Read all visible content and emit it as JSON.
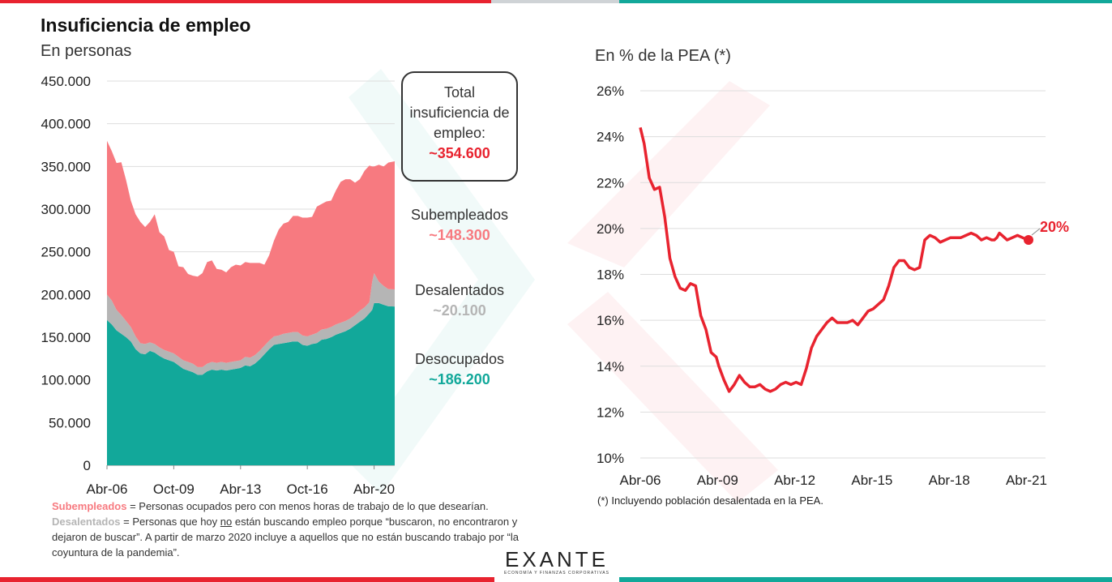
{
  "title": "Insuficiencia de empleo",
  "subtitle_left": "En personas",
  "subtitle_right": "En % de la PEA (*)",
  "total_box": {
    "line1": "Total",
    "line2": "insuficiencia de",
    "line3": "empleo:",
    "value": "~354.600"
  },
  "labels": {
    "subempleados": {
      "name": "Subempleados",
      "value": "~148.300",
      "color": "#f77a80"
    },
    "desalentados": {
      "name": "Desalentados",
      "value": "~20.100",
      "color": "#b5b5b5"
    },
    "desocupados": {
      "name": "Desocupados",
      "value": "~186.200",
      "color": "#12a89a"
    }
  },
  "notes": {
    "sub_term": "Subempleados",
    "sub_def": " = Personas ocupados pero con menos horas de trabajo de lo que desearían.",
    "des_term": "Desalentados",
    "des_def_a": " = Personas que hoy ",
    "des_def_no": "no",
    "des_def_b": " están buscando empleo porque “buscaron, no encontraron y dejaron de buscar”. A partir de marzo 2020 incluye a aquellos que no están buscando trabajo por “la coyuntura de la pandemia”."
  },
  "footnote": "(*) Incluyendo población desalentada en la PEA.",
  "logo": {
    "word": "EXANTE",
    "tagline": "ECONOMÍA Y FINANZAS CORPORATIVAS"
  },
  "chart_data": [
    {
      "type": "area",
      "stacked": true,
      "x_start": 2006.25,
      "x_end": 2021.33,
      "xtick_labels": [
        "Abr-06",
        "Oct-09",
        "Abr-13",
        "Oct-16",
        "Abr-20"
      ],
      "xtick_positions": [
        2006.25,
        2009.75,
        2013.25,
        2016.75,
        2020.25
      ],
      "ylim": [
        0,
        450000
      ],
      "ytick_values": [
        0,
        50000,
        100000,
        150000,
        200000,
        250000,
        300000,
        350000,
        400000,
        450000
      ],
      "ytick_labels": [
        "0",
        "50.000",
        "100.000",
        "150.000",
        "200.000",
        "250.000",
        "300.000",
        "350.000",
        "400.000",
        "450.000"
      ],
      "grid": true,
      "x": [
        2006.25,
        2006.5,
        2006.75,
        2007,
        2007.25,
        2007.5,
        2007.75,
        2008,
        2008.25,
        2008.5,
        2008.75,
        2009,
        2009.25,
        2009.5,
        2009.75,
        2010,
        2010.25,
        2010.5,
        2010.75,
        2011,
        2011.25,
        2011.5,
        2011.75,
        2012,
        2012.25,
        2012.5,
        2012.75,
        2013,
        2013.25,
        2013.5,
        2013.75,
        2014,
        2014.25,
        2014.5,
        2014.75,
        2015,
        2015.25,
        2015.5,
        2015.75,
        2016,
        2016.25,
        2016.5,
        2016.75,
        2017,
        2017.25,
        2017.5,
        2017.75,
        2018,
        2018.25,
        2018.5,
        2018.75,
        2019,
        2019.25,
        2019.5,
        2019.75,
        2020,
        2020.15,
        2020.25,
        2020.5,
        2020.75,
        2021,
        2021.33
      ],
      "series": [
        {
          "name": "Desocupados",
          "color": "#12a89a",
          "values": [
            170000,
            165000,
            158000,
            154000,
            150000,
            145000,
            136000,
            131000,
            130000,
            134000,
            132000,
            128000,
            125000,
            123000,
            121000,
            117000,
            113000,
            111000,
            109000,
            106000,
            106000,
            110000,
            112000,
            111000,
            112000,
            111000,
            112000,
            113000,
            114000,
            117000,
            116000,
            119000,
            124000,
            130000,
            136000,
            141000,
            142000,
            143000,
            144000,
            145000,
            145000,
            141000,
            140000,
            142000,
            143000,
            147000,
            148000,
            150000,
            153000,
            155000,
            157000,
            160000,
            164000,
            168000,
            172000,
            178000,
            182000,
            190000,
            190000,
            188000,
            186200,
            186000
          ]
        },
        {
          "name": "Desalentados",
          "color": "#b5b5b5",
          "values": [
            30000,
            28000,
            24000,
            22000,
            19000,
            17000,
            15000,
            12000,
            12000,
            10000,
            10000,
            10000,
            10000,
            10000,
            10000,
            10000,
            10000,
            10000,
            10000,
            9000,
            9000,
            9000,
            9000,
            9000,
            9000,
            9000,
            9000,
            9000,
            9000,
            10000,
            10000,
            10000,
            10000,
            10000,
            10000,
            10000,
            10000,
            11000,
            11000,
            11000,
            11000,
            11000,
            11000,
            11000,
            12000,
            12000,
            12000,
            12000,
            12000,
            12000,
            12000,
            12000,
            12000,
            13000,
            13000,
            13000,
            33000,
            35000,
            25000,
            22000,
            20100,
            20000
          ]
        },
        {
          "name": "Subempleados",
          "color": "#f77a80",
          "values": [
            180000,
            175000,
            172000,
            179000,
            165000,
            148000,
            143000,
            142000,
            137000,
            141000,
            152000,
            135000,
            133000,
            119000,
            119000,
            106000,
            109000,
            103000,
            103000,
            106000,
            110000,
            119000,
            119000,
            110000,
            108000,
            106000,
            111000,
            113000,
            111000,
            111000,
            111000,
            108000,
            103000,
            95000,
            100000,
            112000,
            124000,
            129000,
            130000,
            136000,
            136000,
            138000,
            139000,
            138000,
            148000,
            147000,
            149000,
            148000,
            157000,
            165000,
            166000,
            163000,
            155000,
            154000,
            160000,
            160000,
            135000,
            125000,
            137000,
            140000,
            148300,
            150000
          ]
        }
      ]
    },
    {
      "type": "line",
      "x_start": 2006.25,
      "x_end": 2021.33,
      "xtick_labels": [
        "Abr-06",
        "Abr-09",
        "Abr-12",
        "Abr-15",
        "Abr-18",
        "Abr-21"
      ],
      "xtick_positions": [
        2006.25,
        2009.25,
        2012.25,
        2015.25,
        2018.25,
        2021.25
      ],
      "ylim": [
        10,
        26
      ],
      "ytick_values": [
        10,
        12,
        14,
        16,
        18,
        20,
        22,
        24,
        26
      ],
      "ytick_labels": [
        "10%",
        "12%",
        "14%",
        "16%",
        "18%",
        "20%",
        "22%",
        "24%",
        "26%"
      ],
      "grid": true,
      "series": [
        {
          "name": "Insuficiencia de empleo",
          "color": "#e8232f",
          "x": [
            2006.25,
            2006.4,
            2006.6,
            2006.8,
            2007,
            2007.2,
            2007.4,
            2007.6,
            2007.8,
            2008,
            2008.2,
            2008.4,
            2008.6,
            2008.8,
            2009,
            2009.2,
            2009.3,
            2009.5,
            2009.7,
            2009.9,
            2010.1,
            2010.3,
            2010.5,
            2010.7,
            2010.9,
            2011.1,
            2011.3,
            2011.5,
            2011.7,
            2011.9,
            2012.1,
            2012.3,
            2012.5,
            2012.7,
            2012.9,
            2013.1,
            2013.3,
            2013.5,
            2013.7,
            2013.9,
            2014.1,
            2014.3,
            2014.5,
            2014.7,
            2014.9,
            2015.1,
            2015.3,
            2015.5,
            2015.7,
            2015.9,
            2016.1,
            2016.3,
            2016.5,
            2016.7,
            2016.9,
            2017.1,
            2017.3,
            2017.5,
            2017.7,
            2017.9,
            2018.1,
            2018.3,
            2018.5,
            2018.7,
            2018.9,
            2019.1,
            2019.3,
            2019.5,
            2019.7,
            2019.9,
            2020.0,
            2020.1,
            2020.2,
            2020.3,
            2020.4,
            2020.5,
            2020.7,
            2020.9,
            2021.1,
            2021.33
          ],
          "values": [
            24.4,
            23.7,
            22.2,
            21.7,
            21.8,
            20.5,
            18.7,
            17.9,
            17.4,
            17.3,
            17.6,
            17.5,
            16.2,
            15.6,
            14.6,
            14.4,
            14.0,
            13.4,
            12.9,
            13.2,
            13.6,
            13.3,
            13.1,
            13.1,
            13.2,
            13.0,
            12.9,
            13.0,
            13.2,
            13.3,
            13.2,
            13.3,
            13.2,
            13.9,
            14.8,
            15.3,
            15.6,
            15.9,
            16.1,
            15.9,
            15.9,
            15.9,
            16.0,
            15.8,
            16.1,
            16.4,
            16.5,
            16.7,
            16.9,
            17.5,
            18.3,
            18.6,
            18.6,
            18.3,
            18.2,
            18.3,
            19.5,
            19.7,
            19.6,
            19.4,
            19.5,
            19.6,
            19.6,
            19.6,
            19.7,
            19.8,
            19.7,
            19.5,
            19.6,
            19.5,
            19.5,
            19.6,
            19.8,
            19.7,
            19.6,
            19.5,
            19.6,
            19.7,
            19.6,
            19.5
          ]
        }
      ],
      "annotation": "20%"
    }
  ]
}
